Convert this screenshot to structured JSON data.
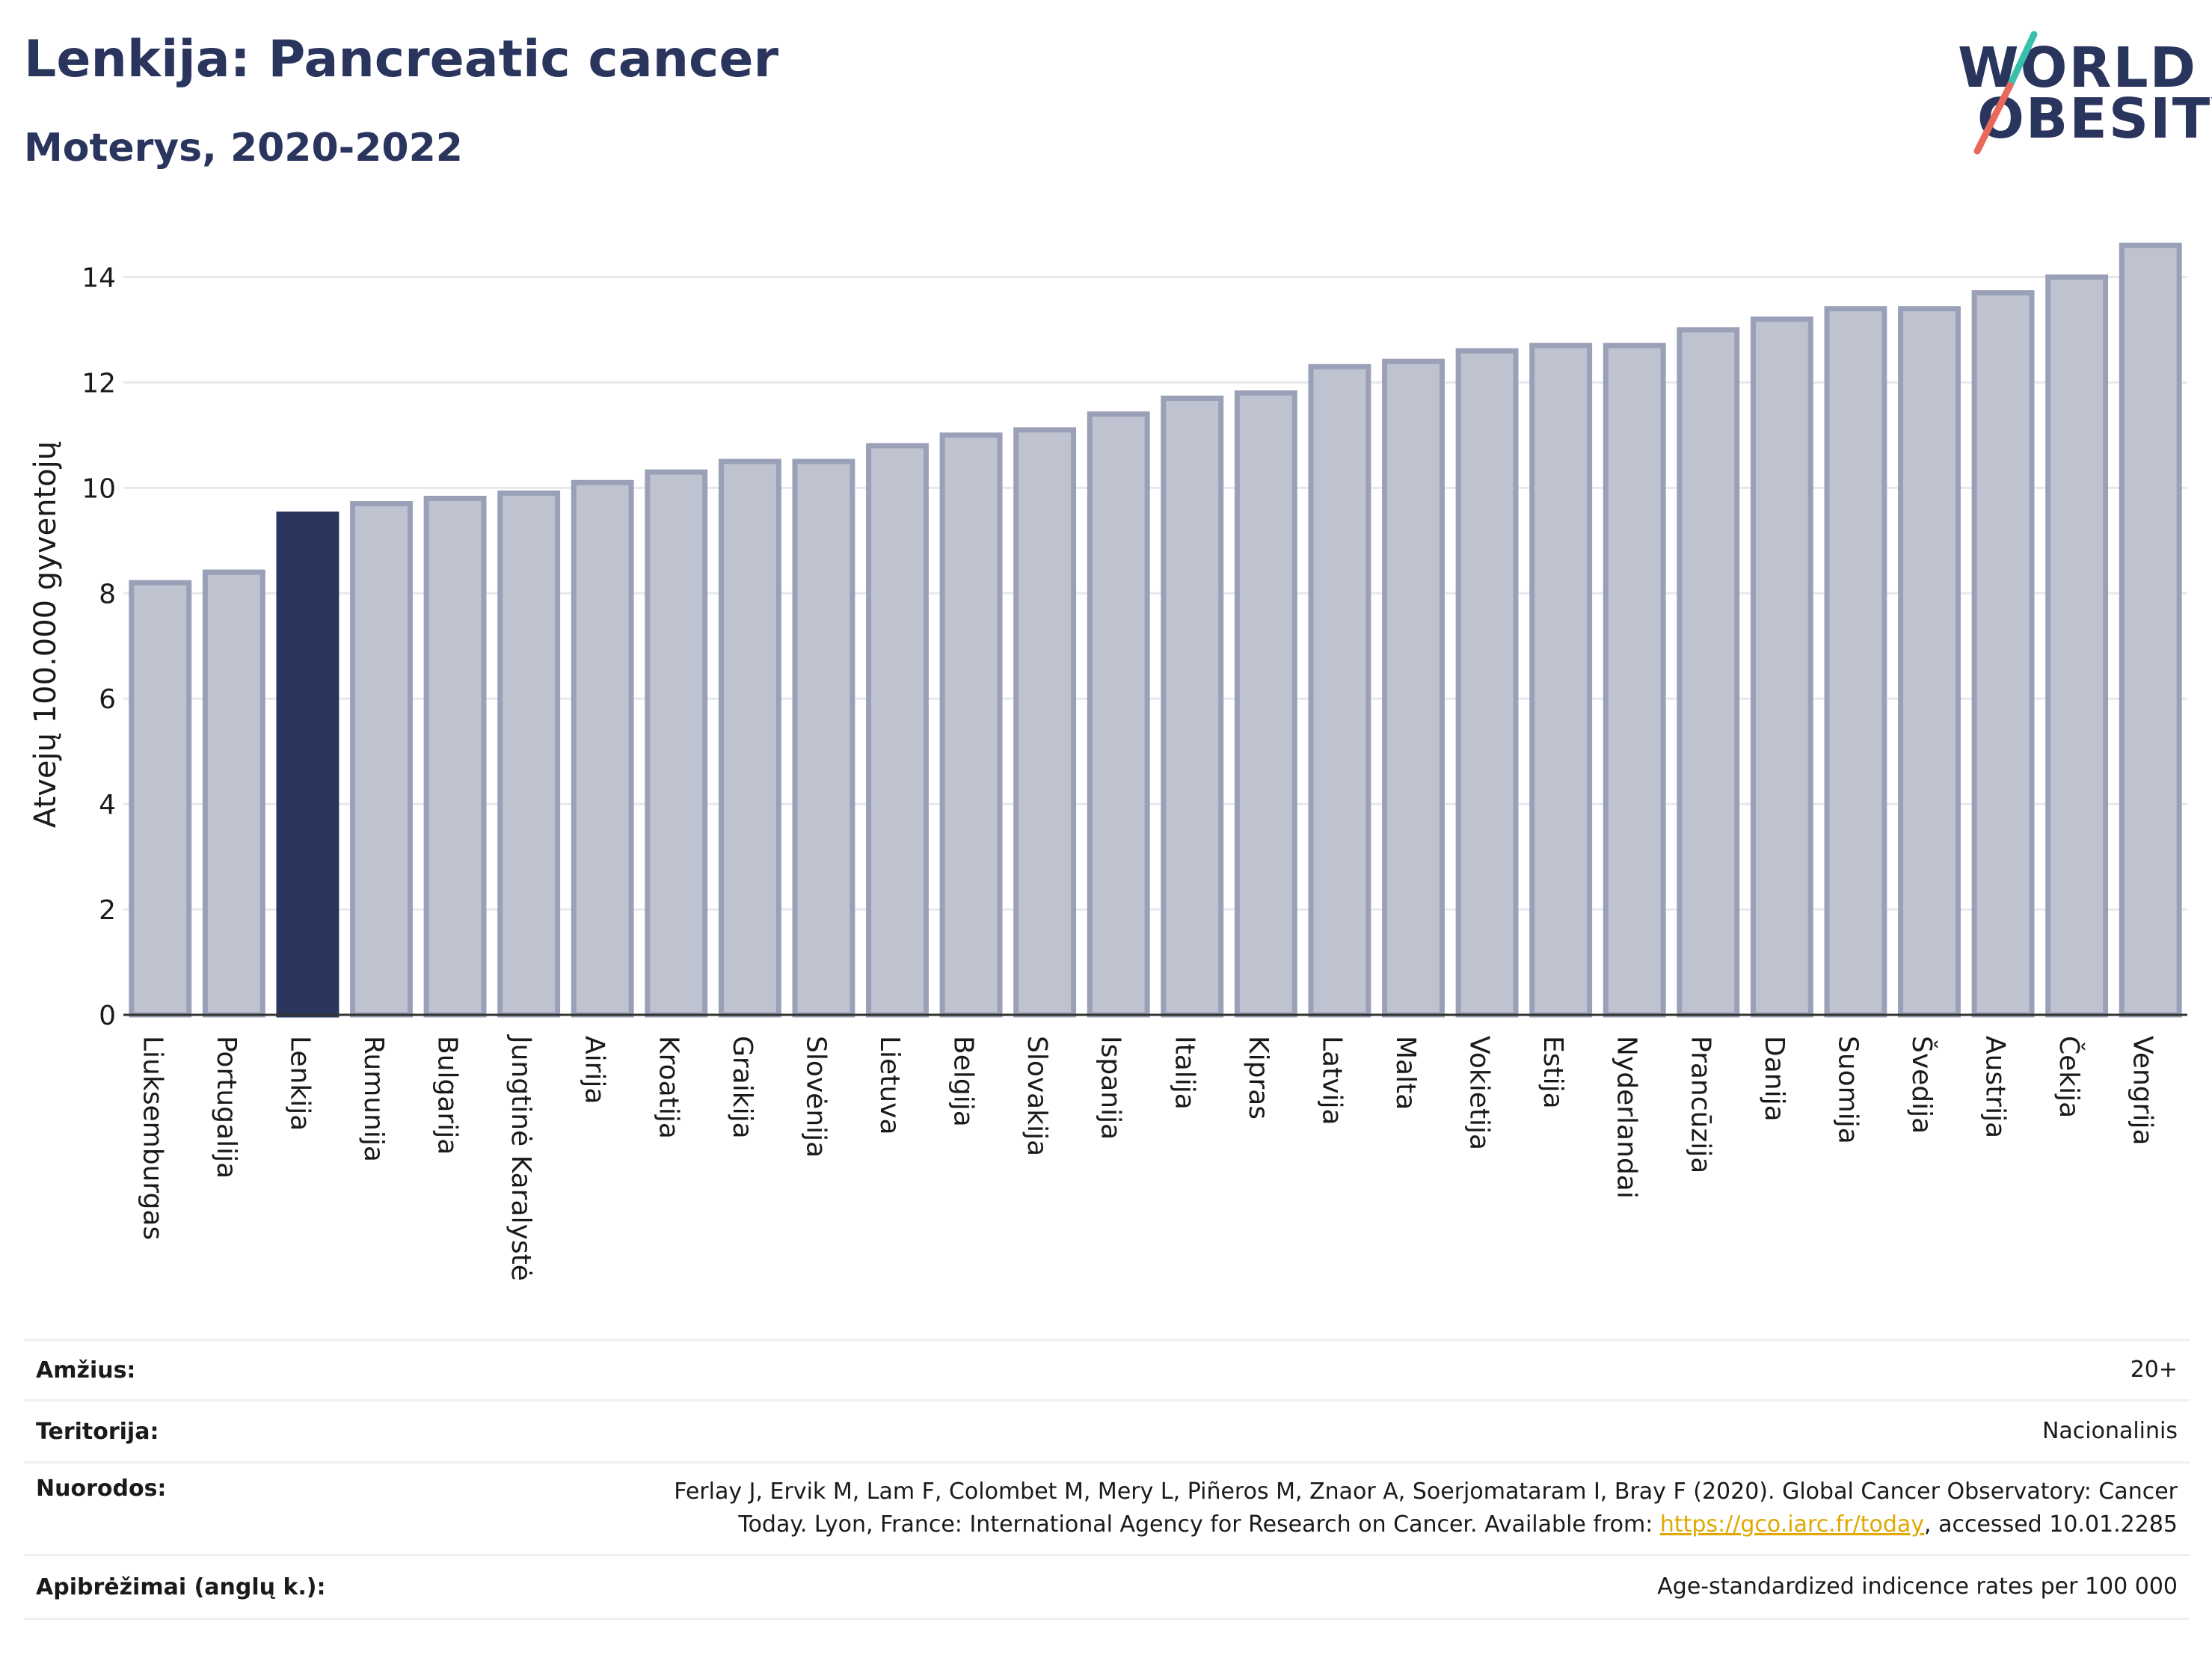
{
  "header": {
    "title": "Lenkija: Pancreatic cancer",
    "subtitle": "Moterys, 2020-2022"
  },
  "logo": {
    "line1": "WORLD",
    "line2": "OBESITY",
    "accent_colors": [
      "#3bbfad",
      "#e8685a"
    ]
  },
  "colors": {
    "bar_default": "#bfc3d0",
    "bar_border": "#9aa0b8",
    "bar_highlight": "#2a355e",
    "text": "#2a355e",
    "grid": "#e6e8ee"
  },
  "chart_data": {
    "type": "bar",
    "ylabel": "Atvejų 100.000 gyventojų",
    "ylim": [
      0,
      15
    ],
    "yticks": [
      0,
      2,
      4,
      6,
      8,
      10,
      12,
      14
    ],
    "grid": true,
    "highlight": "Lenkija",
    "categories": [
      "Liuksemburgas",
      "Portugalija",
      "Lenkija",
      "Rumunija",
      "Bulgarija",
      "Jungtinė Karalystė",
      "Airija",
      "Kroatija",
      "Graikija",
      "Slovėnija",
      "Lietuva",
      "Belgija",
      "Slovakija",
      "Ispanija",
      "Italija",
      "Kipras",
      "Latvija",
      "Malta",
      "Vokietija",
      "Estija",
      "Nyderlandai",
      "Prancūzija",
      "Danija",
      "Suomija",
      "Švedija",
      "Austrija",
      "Čekija",
      "Vengrija"
    ],
    "values": [
      8.2,
      8.4,
      9.5,
      9.7,
      9.8,
      9.9,
      10.1,
      10.3,
      10.5,
      10.5,
      10.8,
      11.0,
      11.1,
      11.4,
      11.7,
      11.8,
      12.3,
      12.4,
      12.6,
      12.7,
      12.7,
      13.0,
      13.2,
      13.4,
      13.4,
      13.7,
      14.0,
      14.6
    ]
  },
  "meta": {
    "age_label": "Amžius:",
    "age_value": "20+",
    "territory_label": "Teritorija:",
    "territory_value": "Nacionalinis",
    "refs_label": "Nuorodos:",
    "refs_line1": "Ferlay J, Ervik M, Lam F, Colombet M, Mery L, Piñeros M, Znaor A, Soerjomataram I, Bray F (2020). Global Cancer Observatory: Cancer",
    "refs_line2_pre": "Today. Lyon, France: International Agency for Research on Cancer. Available from: ",
    "refs_link": "https://gco.iarc.fr/today",
    "refs_line2_post": ", accessed 10.01.2285",
    "defs_label": "Apibrėžimai (anglų k.):",
    "defs_value": "Age-standardized indicence rates per 100 000"
  }
}
